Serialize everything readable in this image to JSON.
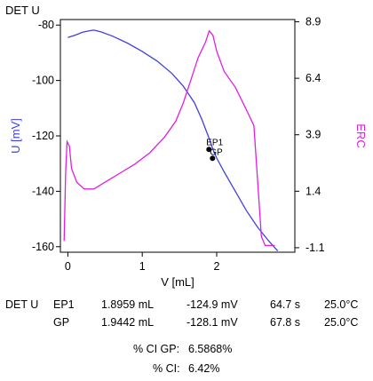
{
  "chart_data": {
    "type": "line",
    "title": "DET U",
    "xlabel": "V [mL]",
    "ylabel_left": "U [mV]",
    "ylabel_right": "ERC",
    "xlim": [
      -0.1,
      3.05
    ],
    "ylim_left": [
      -162,
      -78
    ],
    "ylim_right": [
      -1.3,
      9.0
    ],
    "x_ticks": [
      0,
      1,
      2
    ],
    "y_left_ticks": [
      -80,
      -100,
      -120,
      -140,
      -160
    ],
    "y_right_ticks": [
      8.9,
      6.4,
      3.9,
      1.4,
      -1.1
    ],
    "grid": false,
    "colors": {
      "U": "#4040e0",
      "ERC": "#e020e0",
      "markers": "#000000"
    },
    "series": [
      {
        "axis": "left",
        "points": [
          [
            0.0,
            -84.5
          ],
          [
            0.1,
            -83.6
          ],
          [
            0.2,
            -82.6
          ],
          [
            0.3,
            -82.0
          ],
          [
            0.35,
            -81.8
          ],
          [
            0.45,
            -82.5
          ],
          [
            0.6,
            -84.0
          ],
          [
            0.8,
            -86.5
          ],
          [
            1.0,
            -89.5
          ],
          [
            1.2,
            -93.0
          ],
          [
            1.4,
            -97.5
          ],
          [
            1.55,
            -102.0
          ],
          [
            1.7,
            -108.0
          ],
          [
            1.8,
            -114.0
          ],
          [
            1.9,
            -121.0
          ],
          [
            1.95,
            -124.9
          ],
          [
            2.0,
            -128.0
          ],
          [
            2.1,
            -133.0
          ],
          [
            2.25,
            -140.0
          ],
          [
            2.4,
            -147.0
          ],
          [
            2.55,
            -153.0
          ],
          [
            2.7,
            -158.0
          ],
          [
            2.82,
            -161.5
          ]
        ]
      },
      {
        "axis": "right",
        "points": [
          [
            -0.05,
            -0.8
          ],
          [
            -0.03,
            2.2
          ],
          [
            -0.01,
            3.6
          ],
          [
            0.02,
            3.4
          ],
          [
            0.05,
            2.4
          ],
          [
            0.12,
            1.8
          ],
          [
            0.22,
            1.5
          ],
          [
            0.35,
            1.5
          ],
          [
            0.5,
            1.8
          ],
          [
            0.7,
            2.2
          ],
          [
            0.9,
            2.6
          ],
          [
            1.1,
            3.1
          ],
          [
            1.3,
            3.8
          ],
          [
            1.45,
            4.5
          ],
          [
            1.55,
            5.3
          ],
          [
            1.65,
            6.3
          ],
          [
            1.75,
            7.3
          ],
          [
            1.85,
            8.0
          ],
          [
            1.9,
            8.5
          ],
          [
            1.95,
            8.3
          ],
          [
            2.0,
            7.6
          ],
          [
            2.1,
            6.7
          ],
          [
            2.25,
            6.0
          ],
          [
            2.4,
            5.0
          ],
          [
            2.5,
            4.3
          ],
          [
            2.6,
            -0.6
          ],
          [
            2.65,
            -1.0
          ],
          [
            2.78,
            -1.0
          ]
        ]
      }
    ],
    "markers": [
      {
        "label": "EP1",
        "x": 1.8959,
        "y": -124.9
      },
      {
        "label": "GP",
        "x": 1.9442,
        "y": -128.1
      }
    ]
  },
  "results": {
    "method": "DET U",
    "rows": [
      {
        "name": "EP1",
        "volume": "1.8959 mL",
        "potential": "-124.9 mV",
        "time": "64.7 s",
        "temperature": "25.0°C"
      },
      {
        "name": "GP",
        "volume": "1.9442 mL",
        "potential": "-128.1 mV",
        "time": "67.8 s",
        "temperature": "25.0°C"
      }
    ]
  },
  "summary": {
    "ci_gp_label": "% CI GP:",
    "ci_gp_value": "6.5868%",
    "ci_label": "% CI:",
    "ci_value": "6.42%"
  }
}
